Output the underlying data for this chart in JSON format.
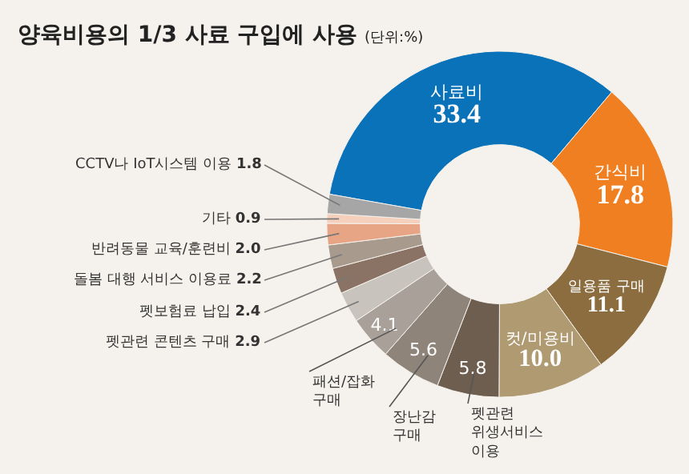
{
  "chart_data": {
    "type": "donut",
    "title": "양육비용의 1/3 사료 구입에 사용",
    "subtitle": "(단위:%)",
    "categories": [
      "사료비",
      "간식비",
      "일용품 구매",
      "컷/미용비",
      "펫관련 위생서비스 이용",
      "장난감 구매",
      "패션/잡화 구매",
      "펫관련 콘텐츠 구매",
      "펫보험료 납입",
      "돌봄 대행 서비스 이용료",
      "반려동물 교육/훈련비",
      "기타",
      "CCTV나 IoT시스템 이용"
    ],
    "values": [
      33.4,
      17.8,
      11.1,
      10.0,
      5.8,
      5.6,
      4.1,
      2.9,
      2.4,
      2.2,
      2.0,
      0.9,
      1.8
    ],
    "value_labels": [
      "33.4",
      "17.8",
      "11.1",
      "10.0",
      "5.8",
      "5.6",
      "4.1",
      "2.9",
      "2.4",
      "2.2",
      "2.0",
      "0.9",
      "1.8"
    ],
    "colors": [
      "#0a72b8",
      "#f07f22",
      "#8c6d3f",
      "#b09a72",
      "#6e5e50",
      "#8e847a",
      "#a9a199",
      "#c8c3bc",
      "#8a7264",
      "#a89a8c",
      "#e8a585",
      "#f5d0bc",
      "#a6a6a6"
    ],
    "legend": false
  }
}
